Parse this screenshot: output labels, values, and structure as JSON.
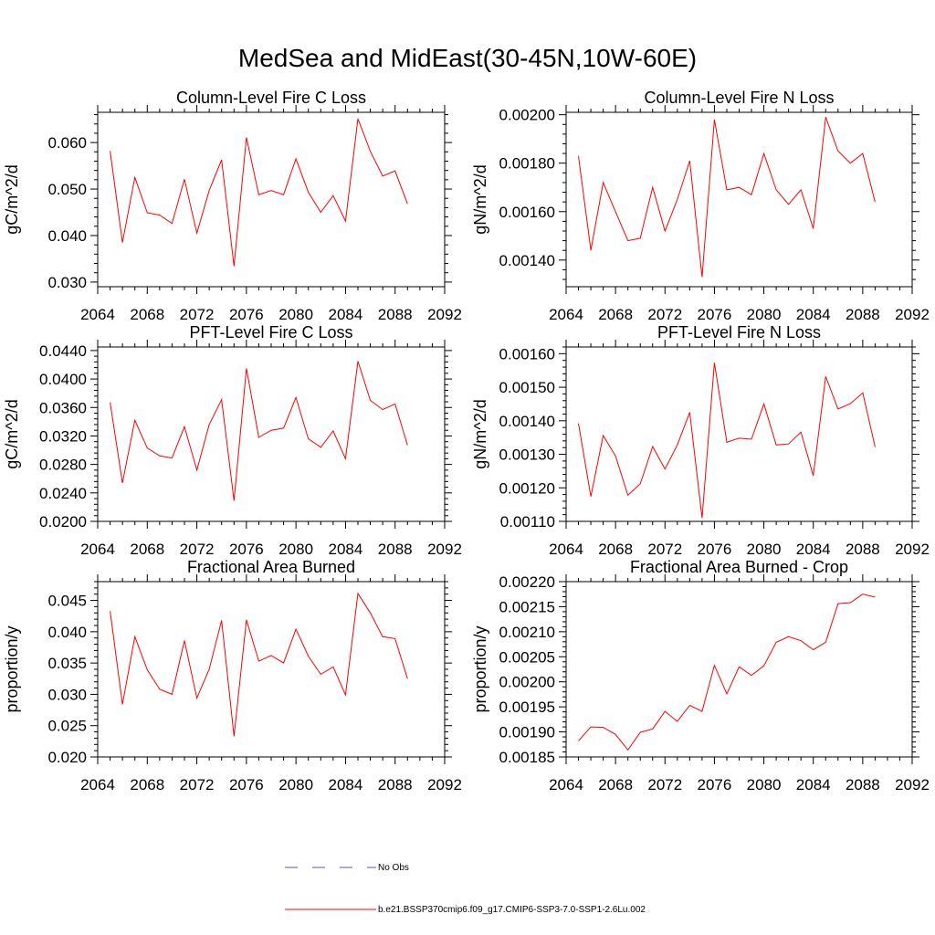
{
  "figure": {
    "title": "MedSea and MidEast(30-45N,10W-60E)"
  },
  "legend": [
    {
      "label": "No Obs",
      "color": "#5555cc",
      "dash": true
    },
    {
      "label": "b.e21.BSSP370cmip6.f09_g17.CMIP6-SSP3-7.0-SSP1-2.6Lu.002",
      "color": "#ff0000",
      "dash": false
    }
  ],
  "chart_data": [
    {
      "type": "line",
      "title": "Column-Level Fire C Loss",
      "ylabel": "gC/m^2/d",
      "xlim": [
        2064,
        2092
      ],
      "ylim": [
        0.029,
        0.0665
      ],
      "xticks": [
        2064,
        2068,
        2072,
        2076,
        2080,
        2084,
        2088,
        2092
      ],
      "yticks": [
        0.03,
        0.04,
        0.05,
        0.06
      ],
      "ytick_labels": [
        "0.030",
        "0.040",
        "0.050",
        "0.060"
      ],
      "x": [
        2065,
        2066,
        2067,
        2068,
        2069,
        2070,
        2071,
        2072,
        2073,
        2074,
        2075,
        2076,
        2077,
        2078,
        2079,
        2080,
        2081,
        2082,
        2083,
        2084,
        2085,
        2086,
        2087,
        2088,
        2089
      ],
      "series": [
        {
          "color": "#ff0000",
          "values": [
            0.0582,
            0.0385,
            0.0525,
            0.0449,
            0.0444,
            0.0426,
            0.0521,
            0.0405,
            0.0497,
            0.0563,
            0.0334,
            0.0611,
            0.0488,
            0.0497,
            0.0488,
            0.0565,
            0.0493,
            0.045,
            0.0486,
            0.0431,
            0.0651,
            0.0581,
            0.0528,
            0.0539,
            0.0468
          ]
        }
      ]
    },
    {
      "type": "line",
      "title": "Column-Level Fire N Loss",
      "ylabel": "gN/m^2/d",
      "xlim": [
        2064,
        2092
      ],
      "ylim": [
        0.00129,
        0.00201
      ],
      "xticks": [
        2064,
        2068,
        2072,
        2076,
        2080,
        2084,
        2088,
        2092
      ],
      "yticks": [
        0.0014,
        0.0016,
        0.0018,
        0.002
      ],
      "ytick_labels": [
        "0.00140",
        "0.00160",
        "0.00180",
        "0.00200"
      ],
      "x": [
        2065,
        2066,
        2067,
        2068,
        2069,
        2070,
        2071,
        2072,
        2073,
        2074,
        2075,
        2076,
        2077,
        2078,
        2079,
        2080,
        2081,
        2082,
        2083,
        2084,
        2085,
        2086,
        2087,
        2088,
        2089
      ],
      "series": [
        {
          "color": "#ff0000",
          "values": [
            0.00183,
            0.00144,
            0.00172,
            0.0016,
            0.00148,
            0.00149,
            0.0017,
            0.00152,
            0.00165,
            0.00181,
            0.00133,
            0.00198,
            0.00169,
            0.0017,
            0.00167,
            0.00184,
            0.00169,
            0.00163,
            0.00169,
            0.00153,
            0.00199,
            0.00185,
            0.0018,
            0.00184,
            0.00164
          ]
        }
      ]
    },
    {
      "type": "line",
      "title": "PFT-Level Fire C Loss",
      "ylabel": "gC/m^2/d",
      "xlim": [
        2064,
        2092
      ],
      "ylim": [
        0.02,
        0.0445
      ],
      "xticks": [
        2064,
        2068,
        2072,
        2076,
        2080,
        2084,
        2088,
        2092
      ],
      "yticks": [
        0.02,
        0.024,
        0.028,
        0.032,
        0.036,
        0.04,
        0.044
      ],
      "ytick_labels": [
        "0.0200",
        "0.0240",
        "0.0280",
        "0.0320",
        "0.0360",
        "0.0400",
        "0.0440"
      ],
      "x": [
        2065,
        2066,
        2067,
        2068,
        2069,
        2070,
        2071,
        2072,
        2073,
        2074,
        2075,
        2076,
        2077,
        2078,
        2079,
        2080,
        2081,
        2082,
        2083,
        2084,
        2085,
        2086,
        2087,
        2088,
        2089
      ],
      "series": [
        {
          "color": "#ff0000",
          "values": [
            0.0367,
            0.0254,
            0.0342,
            0.0303,
            0.0292,
            0.0289,
            0.0333,
            0.0272,
            0.0336,
            0.0371,
            0.0229,
            0.0415,
            0.0318,
            0.0328,
            0.0331,
            0.0374,
            0.0316,
            0.0304,
            0.0327,
            0.0288,
            0.0425,
            0.037,
            0.0357,
            0.0365,
            0.0307
          ]
        }
      ]
    },
    {
      "type": "line",
      "title": "PFT-Level Fire N Loss",
      "ylabel": "gN/m^2/d",
      "xlim": [
        2064,
        2092
      ],
      "ylim": [
        0.0011,
        0.00162
      ],
      "xticks": [
        2064,
        2068,
        2072,
        2076,
        2080,
        2084,
        2088,
        2092
      ],
      "yticks": [
        0.0011,
        0.0012,
        0.0013,
        0.0014,
        0.0015,
        0.0016
      ],
      "ytick_labels": [
        "0.00110",
        "0.00120",
        "0.00130",
        "0.00140",
        "0.00150",
        "0.00160"
      ],
      "x": [
        2065,
        2066,
        2067,
        2068,
        2069,
        2070,
        2071,
        2072,
        2073,
        2074,
        2075,
        2076,
        2077,
        2078,
        2079,
        2080,
        2081,
        2082,
        2083,
        2084,
        2085,
        2086,
        2087,
        2088,
        2089
      ],
      "series": [
        {
          "color": "#ff0000",
          "values": [
            0.001392,
            0.001174,
            0.001356,
            0.001295,
            0.001178,
            0.001212,
            0.001323,
            0.001256,
            0.001328,
            0.001425,
            0.00111,
            0.001573,
            0.001336,
            0.001348,
            0.001345,
            0.00145,
            0.001328,
            0.001331,
            0.001366,
            0.001236,
            0.001532,
            0.001435,
            0.001451,
            0.001483,
            0.001322
          ]
        }
      ]
    },
    {
      "type": "line",
      "title": "Fractional Area Burned",
      "ylabel": "proportion/y",
      "xlim": [
        2064,
        2092
      ],
      "ylim": [
        0.02,
        0.048
      ],
      "xticks": [
        2064,
        2068,
        2072,
        2076,
        2080,
        2084,
        2088,
        2092
      ],
      "yticks": [
        0.02,
        0.025,
        0.03,
        0.035,
        0.04,
        0.045
      ],
      "ytick_labels": [
        "0.020",
        "0.025",
        "0.030",
        "0.035",
        "0.040",
        "0.045"
      ],
      "x": [
        2065,
        2066,
        2067,
        2068,
        2069,
        2070,
        2071,
        2072,
        2073,
        2074,
        2075,
        2076,
        2077,
        2078,
        2079,
        2080,
        2081,
        2082,
        2083,
        2084,
        2085,
        2086,
        2087,
        2088,
        2089
      ],
      "series": [
        {
          "color": "#ff0000",
          "values": [
            0.0433,
            0.0284,
            0.0392,
            0.0339,
            0.0308,
            0.03,
            0.0386,
            0.0294,
            0.034,
            0.0418,
            0.0233,
            0.0419,
            0.0353,
            0.0362,
            0.035,
            0.0404,
            0.0361,
            0.0332,
            0.0344,
            0.0299,
            0.0461,
            0.043,
            0.0392,
            0.0389,
            0.0325
          ]
        }
      ]
    },
    {
      "type": "line",
      "title": "Fractional Area Burned - Crop",
      "ylabel": "proportion/y",
      "xlim": [
        2064,
        2092
      ],
      "ylim": [
        0.00185,
        0.0022
      ],
      "xticks": [
        2064,
        2068,
        2072,
        2076,
        2080,
        2084,
        2088,
        2092
      ],
      "yticks": [
        0.00185,
        0.0019,
        0.00195,
        0.002,
        0.00205,
        0.0021,
        0.00215,
        0.0022
      ],
      "ytick_labels": [
        "0.00185",
        "0.00190",
        "0.00195",
        "0.00200",
        "0.00205",
        "0.00210",
        "0.00215",
        "0.00220"
      ],
      "x": [
        2065,
        2066,
        2067,
        2068,
        2069,
        2070,
        2071,
        2072,
        2073,
        2074,
        2075,
        2076,
        2077,
        2078,
        2079,
        2080,
        2081,
        2082,
        2083,
        2084,
        2085,
        2086,
        2087,
        2088,
        2089
      ],
      "series": [
        {
          "color": "#ff0000",
          "values": [
            0.001882,
            0.00191,
            0.001909,
            0.001895,
            0.001864,
            0.001899,
            0.001906,
            0.001941,
            0.001921,
            0.001953,
            0.001941,
            0.002033,
            0.001976,
            0.00203,
            0.002013,
            0.002032,
            0.002079,
            0.00209,
            0.002082,
            0.002064,
            0.002079,
            0.002156,
            0.002158,
            0.002175,
            0.002169
          ]
        }
      ]
    }
  ]
}
